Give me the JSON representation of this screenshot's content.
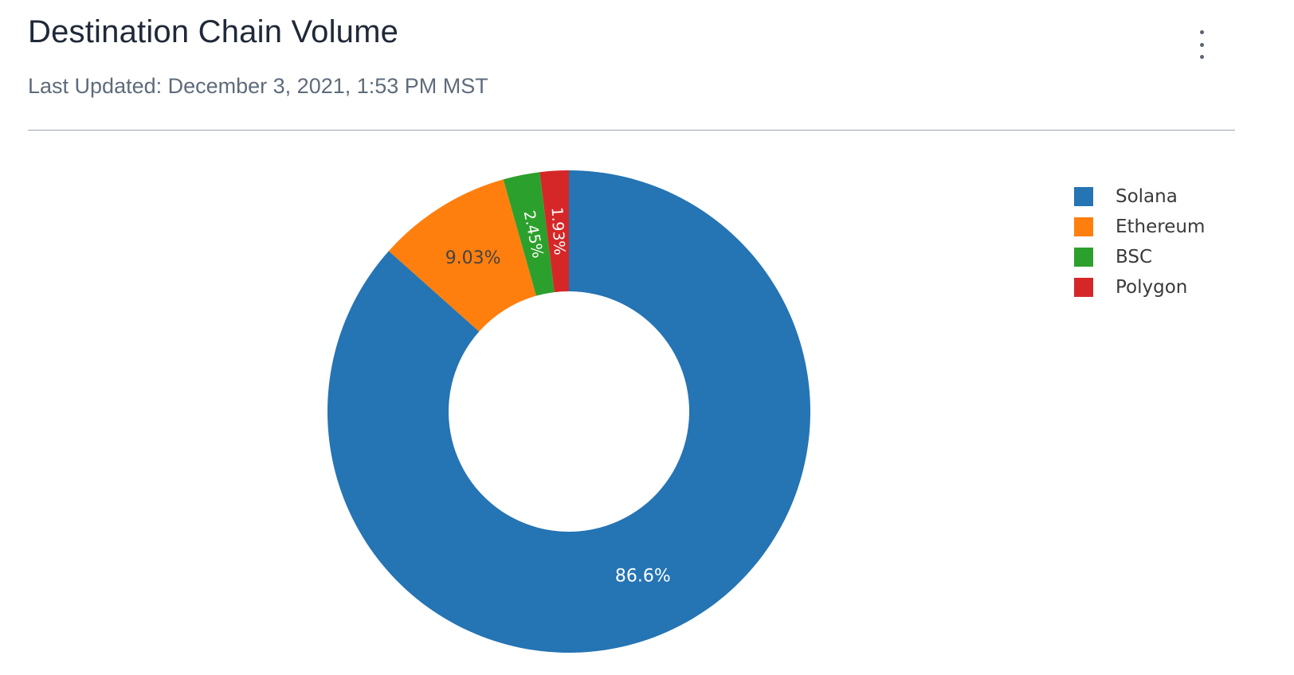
{
  "header": {
    "title": "Destination Chain Volume",
    "subtitle": "Last Updated: December 3, 2021, 1:53 PM MST",
    "menu_icon": "more-vertical-icon"
  },
  "chart_data": {
    "type": "pie",
    "style": "donut",
    "title": "",
    "categories": [
      "Solana",
      "Ethereum",
      "BSC",
      "Polygon"
    ],
    "values": [
      86.6,
      9.03,
      2.45,
      1.93
    ],
    "labels": [
      "86.6%",
      "9.03%",
      "2.45%",
      "1.93%"
    ],
    "colors": [
      "#2574b4",
      "#ff7f0e",
      "#2ca02c",
      "#d62728"
    ],
    "label_colors": [
      "#ffffff",
      "#444444",
      "#ffffff",
      "#ffffff"
    ],
    "legend_position": "top-right",
    "direction": "clockwise",
    "start": "top"
  }
}
